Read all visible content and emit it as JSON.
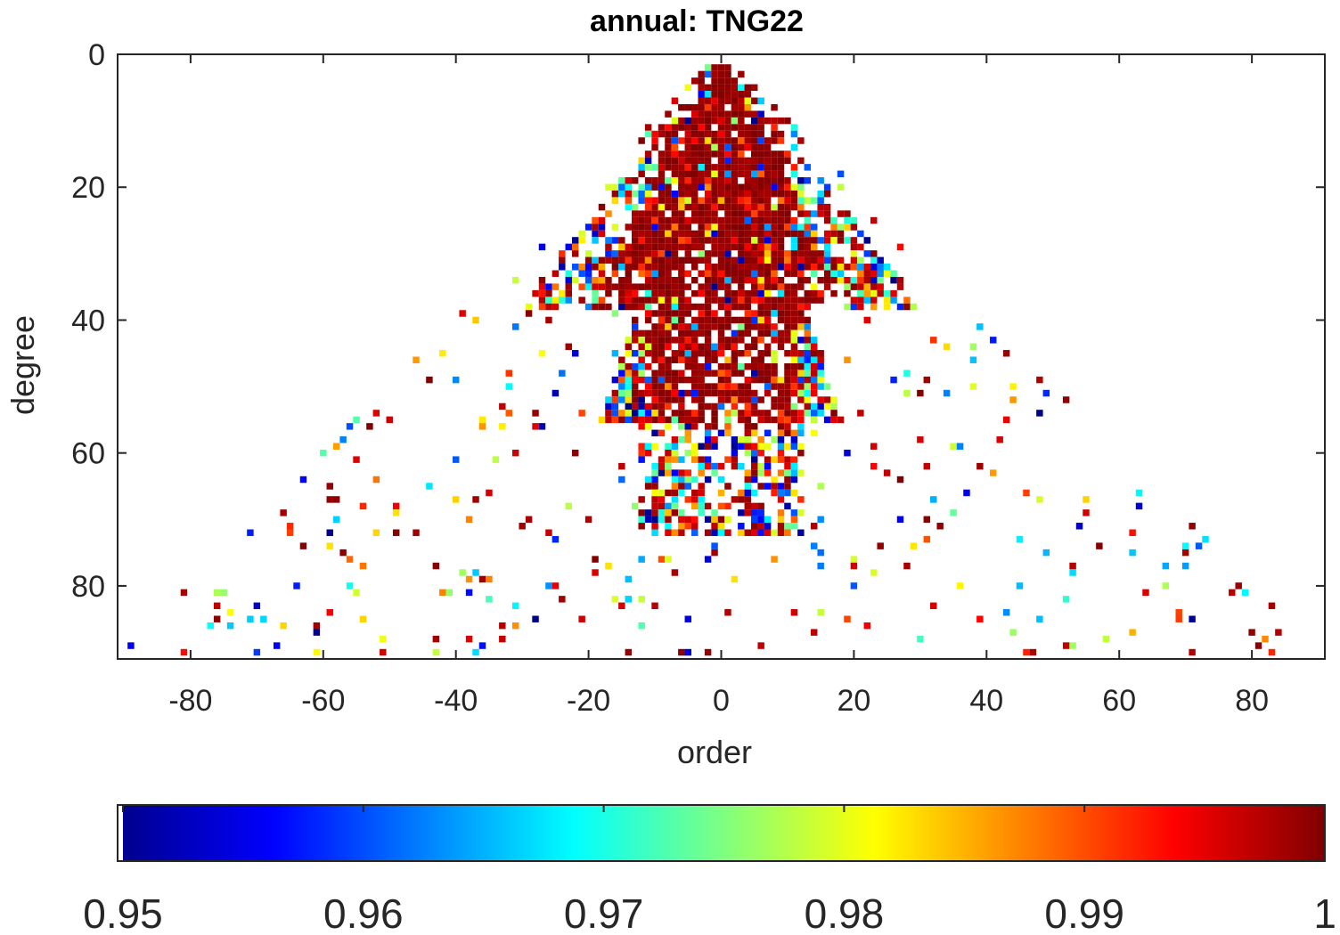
{
  "chart_data": {
    "type": "heatmap",
    "title": "annual: TNG22",
    "xlabel": "order",
    "ylabel": "degree",
    "xlim": [
      -91,
      91
    ],
    "ylim": [
      0,
      91
    ],
    "y_direction": "reversed",
    "xticks": [
      -80,
      -60,
      -40,
      -20,
      0,
      20,
      40,
      60,
      80
    ],
    "yticks": [
      0,
      20,
      40,
      60,
      80
    ],
    "colorbar": {
      "colormap": "jet",
      "min": 0.95,
      "max": 1,
      "ticks": [
        "0.95",
        "0.96",
        "0.97",
        "0.98",
        "0.99",
        "1"
      ],
      "orientation": "horizontal",
      "location": "bottom"
    },
    "background_color": "#ffffff",
    "description_values": "Per-coefficient correlation values; dense block of values near 1 (dark red) for |order| <= degree up to about degree 30, sparser scattered values between 0.95 and 1 at higher degrees up to 90."
  }
}
